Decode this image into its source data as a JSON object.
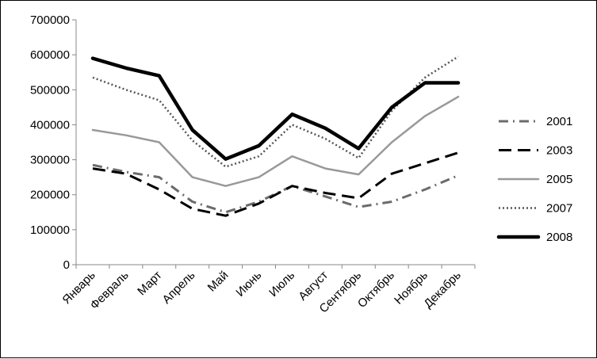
{
  "chart_data": {
    "type": "line",
    "title": "",
    "xlabel": "",
    "ylabel": "",
    "categories": [
      "Январь",
      "Февраль",
      "Март",
      "Апрель",
      "Май",
      "Июнь",
      "Июль",
      "Август",
      "Сентябрь",
      "Октябрь",
      "Ноябрь",
      "Декабрь"
    ],
    "yticks": [
      "0",
      "100000",
      "200000",
      "300000",
      "400000",
      "500000",
      "600000",
      "700000"
    ],
    "ylim": [
      0,
      700000
    ],
    "grid": false,
    "legend_position": "right",
    "series": [
      {
        "name": "2001",
        "color": "#6b6b6b",
        "style": "dash-dot",
        "values": [
          285000,
          265000,
          250000,
          180000,
          150000,
          180000,
          225000,
          195000,
          165000,
          180000,
          215000,
          255000
        ]
      },
      {
        "name": "2003",
        "color": "#000000",
        "style": "long-dash",
        "values": [
          275000,
          260000,
          215000,
          160000,
          140000,
          175000,
          225000,
          205000,
          190000,
          260000,
          290000,
          320000
        ]
      },
      {
        "name": "2005",
        "color": "#999999",
        "style": "solid",
        "values": [
          385000,
          370000,
          350000,
          250000,
          225000,
          250000,
          310000,
          275000,
          258000,
          350000,
          425000,
          480000
        ]
      },
      {
        "name": "2007",
        "color": "#555555",
        "style": "dotted",
        "values": [
          535000,
          500000,
          470000,
          355000,
          280000,
          310000,
          400000,
          360000,
          305000,
          440000,
          535000,
          595000
        ]
      },
      {
        "name": "2008",
        "color": "#000000",
        "style": "solid-thick",
        "values": [
          590000,
          562000,
          540000,
          385000,
          302000,
          340000,
          430000,
          390000,
          332000,
          450000,
          520000,
          520000
        ]
      }
    ]
  }
}
